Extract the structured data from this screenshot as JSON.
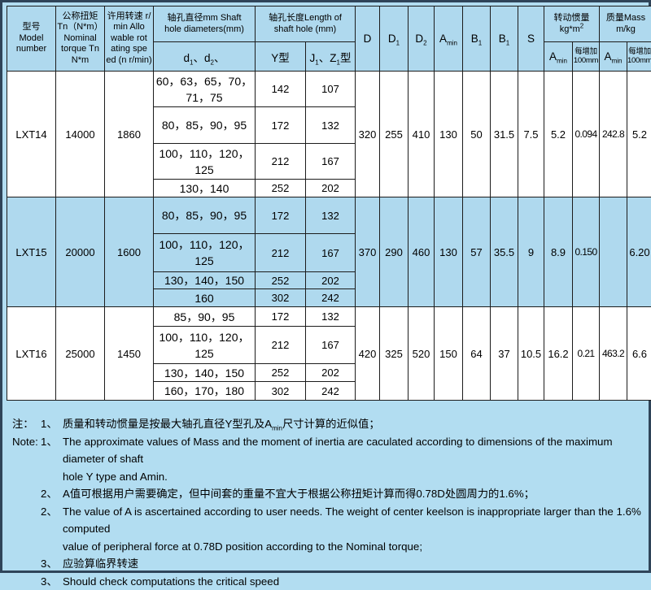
{
  "colors": {
    "page_bg": "#b2ddf1",
    "band_bg": "#afd9ee",
    "white_bg": "#ffffff",
    "frame": "#2f4459",
    "grid_line": "#1c1c1c",
    "text": "#000000"
  },
  "header": {
    "model": "型号\nModel\nnumber",
    "torque": "公称扭矩\nTn（N*m）\nNominal\ntorque Tn\nN*m",
    "speed": "许用转速 r/\nmin  Allo\nwable rot\nating spe\ned (n r/min)",
    "shaft_dia_group": "轴孔直径mm Shaft\nhole diameters(mm)",
    "shaft_len_group": "轴孔长度Length of\nshaft hole (mm)",
    "d": "d~1~、d~2~、",
    "y_type": "Y型",
    "jz_type": "J~1~、Z~1~型",
    "D": "D",
    "D1": "D~1~",
    "D2": "D~2~",
    "Amin": "A~min~",
    "B1a": "B~1~",
    "B1b": "B~1~",
    "S": "S",
    "inertia_group": "转动惯量\nkg*m^2^",
    "mass_group": "质量Mass\nm/kg",
    "inertia_amin": "A~min~",
    "inertia_per100": "每增加\n100mm",
    "mass_amin": "A~min~",
    "mass_per100": "每增加\n100mm"
  },
  "models": [
    {
      "model": "LXT14",
      "torque": "14000",
      "speed": "1860",
      "bores": [
        {
          "d": "60，63，65，70，71，75",
          "y": "142",
          "jz": "107"
        },
        {
          "d": "80，85，90，95",
          "y": "172",
          "jz": "132"
        },
        {
          "d": "100，110，120，125",
          "y": "212",
          "jz": "167"
        },
        {
          "d": "130，140",
          "y": "252",
          "jz": "202"
        }
      ],
      "D": "320",
      "D1": "255",
      "D2": "410",
      "Amin": "130",
      "B1a": "50",
      "B1b": "31.5",
      "S": "7.5",
      "inertia_amin": "5.2",
      "inertia_per100": "0.094",
      "mass_amin": "242.8",
      "mass_per100": "5.2"
    },
    {
      "model": "LXT15",
      "torque": "20000",
      "speed": "1600",
      "bores": [
        {
          "d": "80，85，90，95",
          "y": "172",
          "jz": "132"
        },
        {
          "d": "100，110，120，125",
          "y": "212",
          "jz": "167"
        },
        {
          "d": "130，140，150",
          "y": "252",
          "jz": "202"
        },
        {
          "d": "160",
          "y": "302",
          "jz": "242"
        }
      ],
      "D": "370",
      "D1": "290",
      "D2": "460",
      "Amin": "130",
      "B1a": "57",
      "B1b": "35.5",
      "S": "9",
      "inertia_amin": "8.9",
      "inertia_per100": "0.150",
      "mass_amin": "",
      "mass_per100": "6.20"
    },
    {
      "model": "LXT16",
      "torque": "25000",
      "speed": "1450",
      "bores": [
        {
          "d": "85，90，95",
          "y": "172",
          "jz": "132"
        },
        {
          "d": "100，110，120，125",
          "y": "212",
          "jz": "167"
        },
        {
          "d": "130，140，150",
          "y": "252",
          "jz": "202"
        },
        {
          "d": "160，170，180",
          "y": "302",
          "jz": "242"
        }
      ],
      "D": "420",
      "D1": "325",
      "D2": "520",
      "Amin": "150",
      "B1a": "64",
      "B1b": "37",
      "S": "10.5",
      "inertia_amin": "16.2",
      "inertia_per100": "0.21",
      "mass_amin": "463.2",
      "mass_per100": "6.6"
    }
  ],
  "notes": [
    {
      "label": "注：",
      "num": "1、",
      "text": "质量和转动惯量是按最大轴孔直径Y型孔及A~min~尺寸计算的近似值；"
    },
    {
      "label": "Note:",
      "num": "1、",
      "text": "The approximate values of Mass and the moment of inertia are caculated according to dimensions of the maximum diameter of shaft\nhole Y type and Amin."
    },
    {
      "label": "",
      "num": "2、",
      "text": "A值可根据用户需要确定，但中间套的重量不宜大于根据公称扭矩计算而得0.78D处圆周力的1.6%；"
    },
    {
      "label": "",
      "num": "2、",
      "text": "The value of A is ascertained according to user needs. The weight of center keelson is inappropriate larger than the 1.6% computed\nvalue of peripheral force at 0.78D position according to the Nominal torque;"
    },
    {
      "label": "",
      "num": "3、",
      "text": "应验算临界转速"
    },
    {
      "label": "",
      "num": "3、",
      "text": "Should check computations the critical speed"
    }
  ]
}
